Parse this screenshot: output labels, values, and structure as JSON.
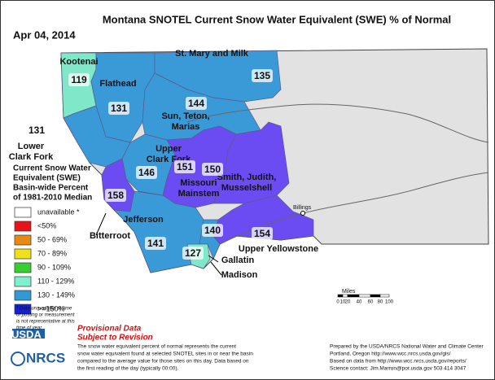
{
  "header": {
    "title": "Montana SNOTEL Current Snow Water Equivalent (SWE) % of Normal",
    "date": "Apr 04, 2014"
  },
  "map": {
    "basins": [
      {
        "name": [
          "Kootenai"
        ],
        "value": 119
      },
      {
        "name": [
          "Flathead"
        ],
        "value": 131
      },
      {
        "name": [
          "St. Mary and Milk"
        ],
        "value": 135
      },
      {
        "name": [
          "Sun, Teton,",
          "Marias"
        ],
        "value": 144
      },
      {
        "name": [
          "Lower",
          "Clark Fork"
        ],
        "value": 131
      },
      {
        "name": [
          "Upper",
          "Clark Fork"
        ],
        "value": 146
      },
      {
        "name": [
          "Missouri",
          "Mainstem"
        ],
        "value": 151
      },
      {
        "name": [
          "Smith, Judith,",
          "Musselshell"
        ],
        "value": 150
      },
      {
        "name": [
          "Bitterroot"
        ],
        "value": 158
      },
      {
        "name": [
          "Jefferson"
        ],
        "value": 141
      },
      {
        "name": [
          "Upper Yellowstone"
        ],
        "value": 154
      },
      {
        "name": [
          "Gallatin"
        ],
        "value": 127
      },
      {
        "name": [
          "Madison"
        ],
        "value": 140
      }
    ],
    "cities": [
      "Billings"
    ],
    "scale": {
      "unit": "Miles",
      "ticks": [
        "0",
        "10",
        "20",
        "40",
        "60",
        "80",
        "100"
      ]
    }
  },
  "legend": {
    "title": [
      "Current Snow Water",
      "Equivalent (SWE)",
      "Basin-wide Percent",
      "of 1981-2010 Median"
    ],
    "items": [
      {
        "label": "unavailable *",
        "color": "#ffffff"
      },
      {
        "label": "<50%",
        "color": "#e8141c"
      },
      {
        "label": "50 - 69%",
        "color": "#e88a10"
      },
      {
        "label": "70 - 89%",
        "color": "#f0e21a"
      },
      {
        "label": "90 - 109%",
        "color": "#38d030"
      },
      {
        "label": "110 - 129%",
        "color": "#7ff0cf"
      },
      {
        "label": "130 - 149%",
        "color": "#2f9ad6"
      },
      {
        "label": ">=150%",
        "color": "#1420d8"
      }
    ],
    "note": [
      "* Data unavailable at time",
      "of posting or measurement",
      "is not representative at this",
      "time of year"
    ]
  },
  "footer": {
    "provisional": [
      "Provisional Data",
      "Subject to Revision"
    ],
    "logos": [
      "USDA",
      "NRCS"
    ],
    "description": [
      "The snow water equivalent percent of normal represents the current",
      "snow water equivalent found at selected SNOTEL sites in or near the basin",
      "compared to the average value for those sites on this day. Data based on",
      "the first reading of the day (typically 00:00)."
    ],
    "credits": [
      "Prepared by the USDA/NRCS National Water and Climate Center",
      "Portland, Oregon http://www.wcc.nrcs.usda.gov/gis/",
      "Based on data from http://www.wcc.nrcs.usda.gov/reports/",
      "Science contact: Jim.Marron@por.usda.gov 503 414 3047"
    ]
  }
}
